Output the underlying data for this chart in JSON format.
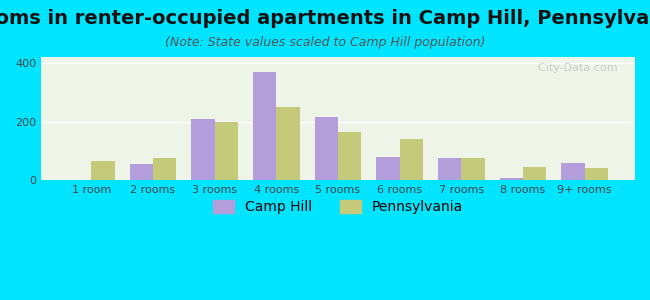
{
  "title": "Rooms in renter-occupied apartments in Camp Hill, Pennsylvania",
  "subtitle": "(Note: State values scaled to Camp Hill population)",
  "categories": [
    "1 room",
    "2 rooms",
    "3 rooms",
    "4 rooms",
    "5 rooms",
    "6 rooms",
    "7 rooms",
    "8 rooms",
    "9+ rooms"
  ],
  "camp_hill": [
    0,
    55,
    210,
    370,
    215,
    80,
    75,
    8,
    60
  ],
  "pennsylvania": [
    65,
    75,
    200,
    248,
    165,
    140,
    75,
    45,
    42
  ],
  "camp_hill_color": "#b39ddb",
  "pennsylvania_color": "#c5c97a",
  "background_outer": "#00e5ff",
  "background_inner": "#eef5e8",
  "ylim": [
    0,
    420
  ],
  "yticks": [
    0,
    200,
    400
  ],
  "bar_width": 0.38,
  "title_fontsize": 14,
  "subtitle_fontsize": 9,
  "tick_fontsize": 8,
  "legend_fontsize": 10
}
